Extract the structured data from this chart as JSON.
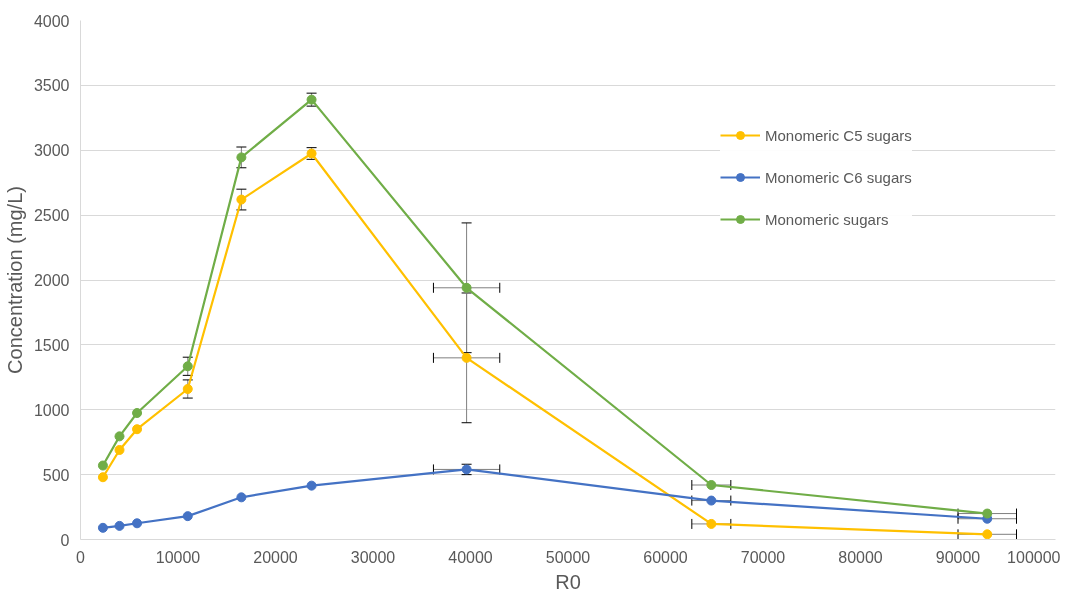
{
  "chart_data": {
    "type": "line",
    "xlabel": "R0",
    "ylabel": "Concentration (mg/L)",
    "x": [
      2300,
      4000,
      5800,
      11000,
      16500,
      23700,
      39600,
      64700,
      93000
    ],
    "series": [
      {
        "name": "Monomeric C5 sugars",
        "color": "#ffc000",
        "values": [
          480,
          690,
          850,
          1160,
          2620,
          2975,
          1400,
          120,
          40
        ],
        "errors": [
          null,
          null,
          null,
          70,
          80,
          45,
          500,
          null,
          null
        ],
        "xerrors": [
          null,
          null,
          null,
          null,
          null,
          null,
          3400,
          2000,
          3000
        ]
      },
      {
        "name": "Monomeric C6 sugars",
        "color": "#4472c4",
        "values": [
          90,
          105,
          125,
          180,
          325,
          415,
          540,
          300,
          160
        ],
        "errors": [
          null,
          null,
          null,
          null,
          null,
          null,
          40,
          null,
          null
        ],
        "xerrors": [
          null,
          null,
          null,
          null,
          null,
          null,
          3400,
          2000,
          3000
        ]
      },
      {
        "name": "Monomeric sugars",
        "color": "#70ad47",
        "values": [
          570,
          795,
          975,
          1335,
          2945,
          3390,
          1940,
          420,
          200
        ],
        "errors": [
          null,
          null,
          null,
          70,
          80,
          50,
          500,
          null,
          null
        ],
        "xerrors": [
          null,
          null,
          null,
          null,
          null,
          null,
          3400,
          2000,
          3000
        ]
      }
    ],
    "xlim": [
      0,
      100000
    ],
    "xticks": [
      0,
      10000,
      20000,
      30000,
      40000,
      50000,
      60000,
      70000,
      80000,
      90000,
      100000
    ],
    "ylim": [
      0,
      4000
    ],
    "yticks": [
      0,
      500,
      1000,
      1500,
      2000,
      2500,
      3000,
      3500,
      4000
    ],
    "grid": "y",
    "legend": "right",
    "marker": "circle",
    "line_style": "solid"
  }
}
